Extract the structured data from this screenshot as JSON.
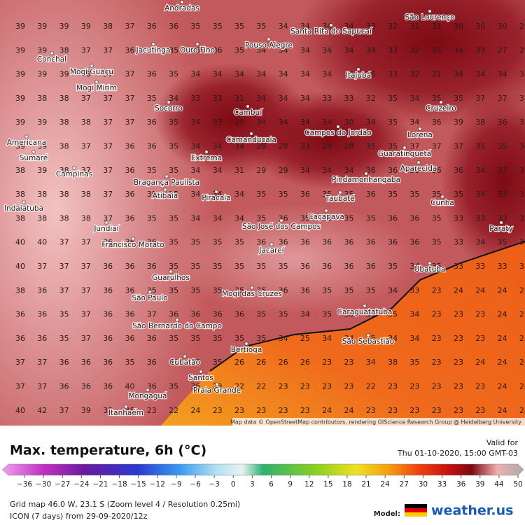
{
  "map": {
    "attribution": "Map data © OpenStreetMap contributors, rendering GIScience Research Group @ Heidelberg University",
    "grid": [
      [
        39,
        39,
        39,
        39,
        38,
        37,
        36,
        36,
        35,
        35,
        35,
        35,
        34,
        34,
        34,
        34,
        33,
        32,
        31,
        31,
        30,
        30,
        30,
        29
      ],
      [
        39,
        39,
        38,
        37,
        37,
        36,
        36,
        35,
        35,
        36,
        35,
        34,
        34,
        34,
        34,
        34,
        34,
        33,
        32,
        35,
        34,
        33,
        27,
        29
      ],
      [
        39,
        39,
        39,
        38,
        37,
        37,
        36,
        35,
        34,
        34,
        34,
        34,
        34,
        34,
        34,
        34,
        35,
        33,
        32,
        31,
        34,
        34,
        34,
        35
      ],
      [
        39,
        38,
        38,
        37,
        37,
        37,
        35,
        34,
        33,
        33,
        31,
        34,
        34,
        34,
        33,
        33,
        32,
        35,
        34,
        35,
        35,
        37,
        37,
        37
      ],
      [
        39,
        39,
        38,
        38,
        37,
        37,
        36,
        35,
        34,
        33,
        29,
        34,
        34,
        34,
        34,
        30,
        34,
        35,
        34,
        36,
        39,
        38,
        36,
        35
      ],
      [
        39,
        39,
        38,
        37,
        37,
        36,
        36,
        35,
        34,
        34,
        34,
        28,
        28,
        33,
        29,
        28,
        35,
        35,
        37,
        37,
        37,
        35,
        35,
        34
      ],
      [
        38,
        39,
        38,
        37,
        37,
        36,
        35,
        35,
        34,
        34,
        31,
        29,
        29,
        34,
        34,
        34,
        36,
        36,
        36,
        36,
        36,
        34,
        33,
        33
      ],
      [
        38,
        38,
        38,
        38,
        37,
        36,
        35,
        35,
        34,
        34,
        34,
        35,
        35,
        36,
        35,
        35,
        36,
        35,
        35,
        35,
        35,
        34,
        33,
        33
      ],
      [
        38,
        38,
        38,
        38,
        37,
        36,
        35,
        35,
        34,
        34,
        34,
        35,
        36,
        35,
        35,
        35,
        35,
        36,
        36,
        35,
        33,
        33,
        33,
        32
      ],
      [
        40,
        40,
        37,
        37,
        36,
        36,
        36,
        35,
        35,
        35,
        35,
        36,
        36,
        36,
        36,
        36,
        36,
        36,
        36,
        35,
        33,
        34,
        35,
        34
      ],
      [
        40,
        37,
        37,
        37,
        36,
        36,
        36,
        35,
        35,
        35,
        35,
        35,
        35,
        36,
        36,
        36,
        36,
        35,
        34,
        35,
        33,
        33,
        33,
        33
      ],
      [
        38,
        36,
        37,
        37,
        36,
        36,
        35,
        35,
        35,
        35,
        35,
        35,
        36,
        36,
        35,
        35,
        35,
        34,
        33,
        23,
        24,
        24,
        24,
        24
      ],
      [
        36,
        36,
        35,
        37,
        36,
        36,
        37,
        36,
        36,
        36,
        36,
        35,
        35,
        34,
        35,
        35,
        35,
        35,
        34,
        23,
        23,
        23,
        24,
        25
      ],
      [
        36,
        36,
        35,
        37,
        36,
        36,
        36,
        35,
        35,
        35,
        35,
        35,
        34,
        25,
        34,
        34,
        35,
        34,
        34,
        23,
        23,
        23,
        24,
        25
      ],
      [
        37,
        37,
        36,
        36,
        36,
        35,
        36,
        35,
        35,
        35,
        26,
        26,
        26,
        26,
        23,
        23,
        34,
        38,
        35,
        23,
        23,
        24,
        24,
        24
      ],
      [
        37,
        37,
        36,
        36,
        36,
        40,
        36,
        35,
        36,
        23,
        22,
        22,
        23,
        23,
        23,
        23,
        22,
        23,
        23,
        23,
        23,
        23,
        24,
        24
      ],
      [
        40,
        42,
        37,
        39,
        35,
        35,
        23,
        22,
        24,
        23,
        23,
        23,
        23,
        23,
        24,
        24,
        23,
        23,
        23,
        23,
        23,
        23,
        24,
        24
      ]
    ],
    "cities": [
      "Andradas",
      "São Lourenço",
      "Pouso Alegre",
      "Santa Rita do Sapucaí",
      "Conchal",
      "Mogi Guaçu",
      "Mogi Mirim",
      "Jacutinga",
      "Ouro Fino",
      "Itajubá",
      "Socorro",
      "Cambuí",
      "Campos do Jordão",
      "Cruzeiro",
      "Lorena",
      "Guaratinguetá",
      "Aparecida",
      "Camanducaia",
      "Extrema",
      "Americana",
      "Sumaré",
      "Campinas",
      "Bragança Paulista",
      "Pindamonhangaba",
      "Taubaté",
      "Cunha",
      "Piracaia",
      "Atibaia",
      "Jundiaí",
      "São José dos Campos",
      "Caçapava",
      "Indaiatuba",
      "Francisco Morato",
      "Jacareí",
      "Guarulhos",
      "Ubatuba",
      "Mogi das Cruzes",
      "São Paulo",
      "Caraguatatuba",
      "São Bernardo do Campo",
      "São Sebastião",
      "Bertioga",
      "Cubatão",
      "Santos",
      "Praia Grande",
      "Mongaguá",
      "Itanhaém",
      "Paraty"
    ]
  },
  "header": {
    "title": "Max. temperature, 6h (°C)",
    "valid_label": "Valid for",
    "valid_time": "Thu 01-10-2020, 15:00 GMT-03"
  },
  "legend": {
    "ticks": [
      {
        "value": -36,
        "label": "−36"
      },
      {
        "value": -30,
        "label": "−30"
      },
      {
        "value": -27,
        "label": "−27"
      },
      {
        "value": -24,
        "label": "−24"
      },
      {
        "value": -21,
        "label": "−21"
      },
      {
        "value": -18,
        "label": "−18"
      },
      {
        "value": -15,
        "label": "−15"
      },
      {
        "value": -12,
        "label": "−12"
      },
      {
        "value": -9,
        "label": "−9"
      },
      {
        "value": -6,
        "label": "−6"
      },
      {
        "value": -3,
        "label": "−3"
      },
      0,
      3,
      6,
      9,
      12,
      15,
      18,
      21,
      24,
      27,
      30,
      33,
      36,
      39,
      44,
      50
    ]
  },
  "footer": {
    "grid_info": "Grid map 46.0 W, 23.1 S (Zoom level 4 / Resolution 0.25mi)",
    "model_run": "ICON (7 days) from 29-09-2020/12z",
    "model_label": "Model:",
    "brand": "weather.us"
  }
}
